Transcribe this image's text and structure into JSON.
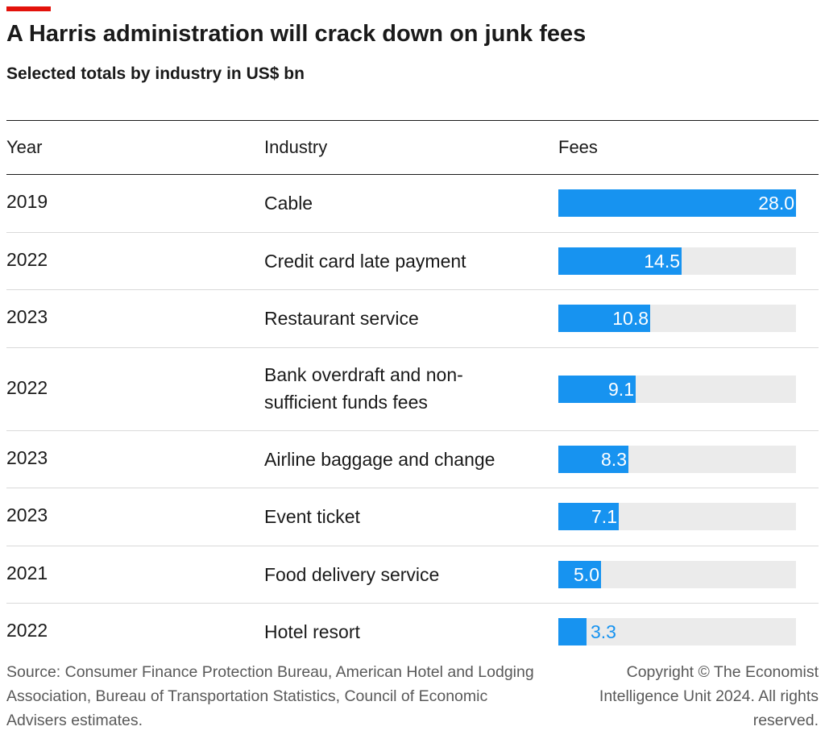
{
  "title": "A Harris administration will crack down on junk fees",
  "subtitle": "Selected totals by industry in US$ bn",
  "columns": {
    "year": "Year",
    "industry": "Industry",
    "fees": "Fees"
  },
  "chart_data": {
    "type": "table",
    "title": "A Harris administration will crack down on junk fees",
    "subtitle": "Selected totals by industry in US$ bn",
    "columns": [
      "Year",
      "Industry",
      "Fees"
    ],
    "xlim": [
      0,
      28.0
    ],
    "rows": [
      {
        "year": "2019",
        "industry": "Cable",
        "value": 28.0,
        "label": "28.0"
      },
      {
        "year": "2022",
        "industry": "Credit card late payment",
        "value": 14.5,
        "label": "14.5"
      },
      {
        "year": "2023",
        "industry": "Restaurant service",
        "value": 10.8,
        "label": "10.8"
      },
      {
        "year": "2022",
        "industry": "Bank overdraft and non-sufficient funds fees",
        "value": 9.1,
        "label": "9.1"
      },
      {
        "year": "2023",
        "industry": "Airline baggage and change",
        "value": 8.3,
        "label": "8.3"
      },
      {
        "year": "2023",
        "industry": "Event ticket",
        "value": 7.1,
        "label": "7.1"
      },
      {
        "year": "2021",
        "industry": "Food delivery service",
        "value": 5.0,
        "label": "5.0"
      },
      {
        "year": "2022",
        "industry": "Hotel resort",
        "value": 3.3,
        "label": "3.3"
      }
    ]
  },
  "colors": {
    "accent": "#e3120b",
    "bar": "#1793f0",
    "track": "#ebebeb"
  },
  "footer": {
    "source": "Source: Consumer Finance Protection Bureau, American Hotel and Lodging Association, Bureau of Transportation Statistics, Council of Economic Advisers estimates.",
    "copyright": "Copyright © The Economist Intelligence Unit 2024. All rights reserved."
  }
}
